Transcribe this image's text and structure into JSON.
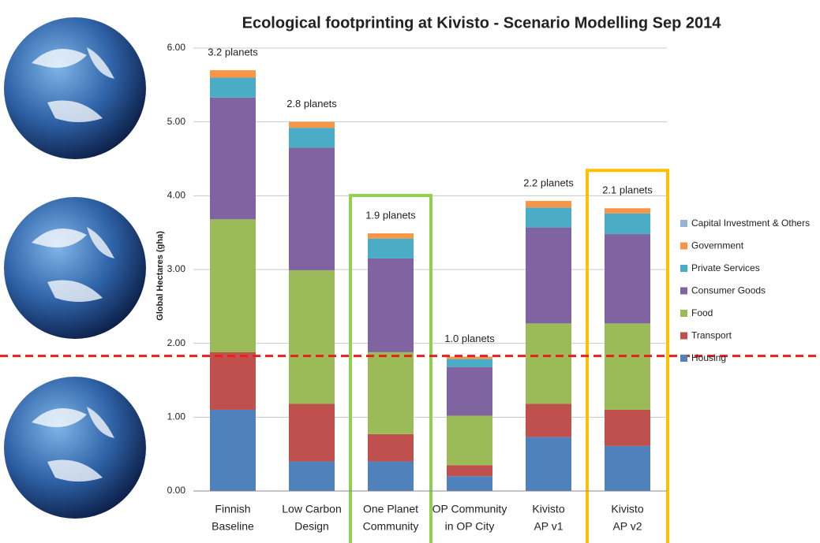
{
  "chart_data": {
    "type": "stacked_bar",
    "title": "Ecological footprinting at Kivisto - Scenario Modelling Sep 2014",
    "y_label": "Global Hectares (gha)",
    "categories": [
      [
        "Finnish",
        "Baseline"
      ],
      [
        "Low Carbon",
        "Design"
      ],
      [
        "One Planet",
        "Community"
      ],
      [
        "OP Community",
        "in OP City"
      ],
      [
        "Kivisto",
        "AP v1"
      ],
      [
        "Kivisto",
        "AP v2"
      ]
    ],
    "planet_labels": [
      "3.2 planets",
      "2.8 planets",
      "1.9 planets",
      "1.0 planets",
      "2.2 planets",
      "2.1 planets"
    ],
    "series": [
      {
        "name": "Housing",
        "color": "#4f81bd",
        "values": [
          1.1,
          0.4,
          0.4,
          0.2,
          0.73,
          0.61
        ]
      },
      {
        "name": "Transport",
        "color": "#c0504d",
        "values": [
          0.78,
          0.78,
          0.37,
          0.15,
          0.45,
          0.49
        ]
      },
      {
        "name": "Food",
        "color": "#9bbb59",
        "values": [
          1.8,
          1.81,
          1.11,
          0.67,
          1.09,
          1.17
        ]
      },
      {
        "name": "Consumer Goods",
        "color": "#8064a2",
        "values": [
          1.65,
          1.66,
          1.27,
          0.66,
          1.3,
          1.21
        ]
      },
      {
        "name": "Private Services",
        "color": "#4bacc6",
        "values": [
          0.27,
          0.27,
          0.27,
          0.11,
          0.27,
          0.28
        ]
      },
      {
        "name": "Government",
        "color": "#f79646",
        "values": [
          0.1,
          0.08,
          0.07,
          0.03,
          0.09,
          0.07
        ]
      },
      {
        "name": "Capital Investment & Others",
        "color": "#95b3d7",
        "values": [
          0,
          0,
          0,
          0,
          0,
          0
        ]
      }
    ],
    "ylim": [
      0,
      6
    ],
    "yticks": [
      {
        "value": 0,
        "label": "0.00"
      },
      {
        "value": 1,
        "label": "1.00"
      },
      {
        "value": 2,
        "label": "2.00"
      },
      {
        "value": 3,
        "label": "3.00"
      },
      {
        "value": 4,
        "label": "4.00"
      },
      {
        "value": 5,
        "label": "5.00"
      },
      {
        "value": 6,
        "label": "6.00"
      }
    ],
    "grid": true,
    "reference_line": {
      "value": 1.83,
      "color": "#e8201a"
    },
    "highlight_colors": [
      null,
      null,
      "#92d050",
      null,
      null,
      "#ffc000"
    ]
  }
}
